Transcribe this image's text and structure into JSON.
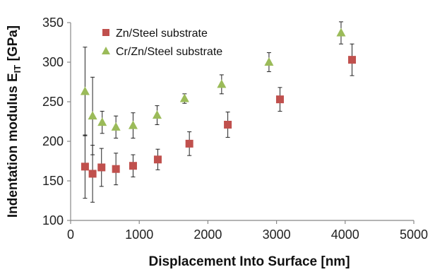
{
  "chart_data": {
    "type": "scatter",
    "title": "",
    "xlabel": "Displacement Into Surface [nm]",
    "ylabel_main": "Indentation modulus E",
    "ylabel_sub": "IT",
    "ylabel_unit": " [GPa]",
    "xlim": [
      0,
      5000
    ],
    "ylim": [
      100,
      350
    ],
    "xticks": [
      0,
      1000,
      2000,
      3000,
      4000,
      5000
    ],
    "yticks": [
      100,
      150,
      200,
      250,
      300,
      350
    ],
    "grid": false,
    "legend_position": "top-left",
    "series": [
      {
        "name": "Zn/Steel substrate",
        "marker": "square",
        "color": "#c0504d",
        "points": [
          {
            "x": 210,
            "y": 168,
            "err": 40
          },
          {
            "x": 320,
            "y": 159,
            "err": 36
          },
          {
            "x": 450,
            "y": 167,
            "err": 24
          },
          {
            "x": 660,
            "y": 165,
            "err": 20
          },
          {
            "x": 910,
            "y": 169,
            "err": 14
          },
          {
            "x": 1270,
            "y": 177,
            "err": 13
          },
          {
            "x": 1730,
            "y": 197,
            "err": 15
          },
          {
            "x": 2290,
            "y": 221,
            "err": 16
          },
          {
            "x": 3050,
            "y": 253,
            "err": 15
          },
          {
            "x": 4100,
            "y": 303,
            "err": 20
          }
        ]
      },
      {
        "name": "Cr/Zn/Steel substrate",
        "marker": "triangle",
        "color": "#9bbb59",
        "points": [
          {
            "x": 210,
            "y": 263,
            "err": 56
          },
          {
            "x": 320,
            "y": 232,
            "err": 49
          },
          {
            "x": 460,
            "y": 224,
            "err": 14
          },
          {
            "x": 660,
            "y": 218,
            "err": 14
          },
          {
            "x": 910,
            "y": 220,
            "err": 16
          },
          {
            "x": 1260,
            "y": 233,
            "err": 12
          },
          {
            "x": 1660,
            "y": 254,
            "err": 6
          },
          {
            "x": 2200,
            "y": 272,
            "err": 12
          },
          {
            "x": 2890,
            "y": 300,
            "err": 12
          },
          {
            "x": 3940,
            "y": 337,
            "err": 14
          }
        ]
      }
    ]
  }
}
